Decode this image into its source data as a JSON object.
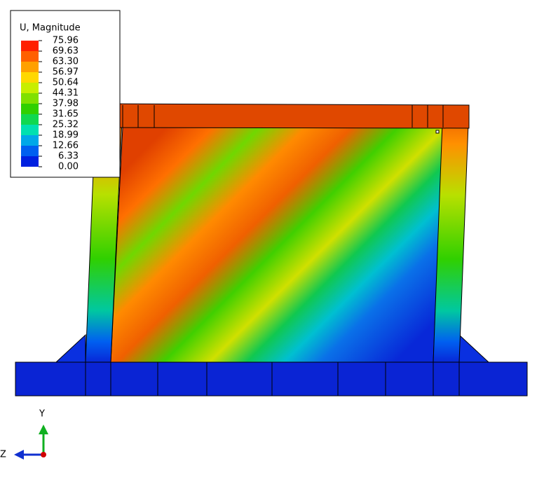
{
  "legend": {
    "title": "U, Magnitude",
    "labels": [
      "75.96",
      "69.63",
      "63.30",
      "56.97",
      "50.64",
      "44.31",
      "37.98",
      "31.65",
      "25.32",
      "18.99",
      "12.66",
      "6.33",
      "0.00"
    ],
    "colors": [
      "#ff2000",
      "#ff6000",
      "#ffa000",
      "#ffd800",
      "#c8ee00",
      "#80e000",
      "#30d000",
      "#10d850",
      "#00e0b0",
      "#00a8e8",
      "#0060f0",
      "#0020e0"
    ]
  },
  "triad": {
    "y_label": "Y",
    "z_label": "Z"
  }
}
